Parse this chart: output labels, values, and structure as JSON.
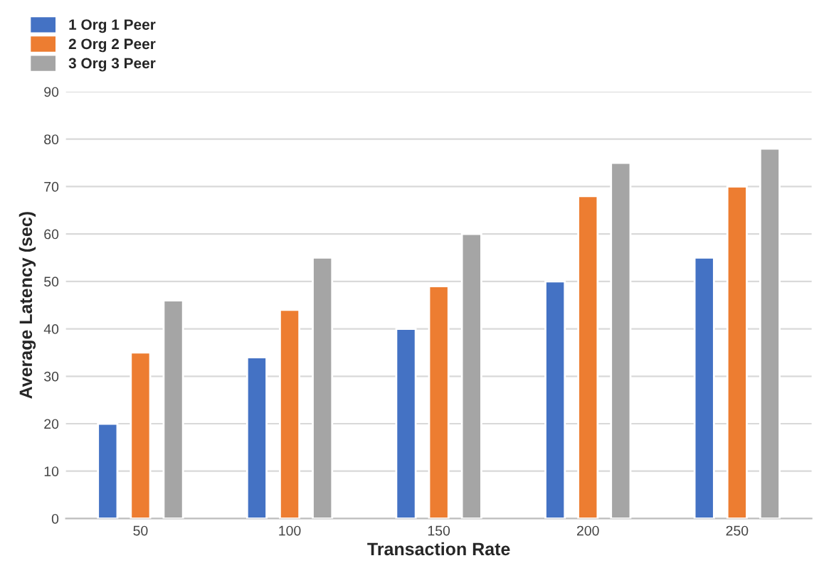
{
  "chart_data": {
    "type": "bar",
    "xlabel": "Transaction Rate",
    "ylabel": "Average Latency (sec)",
    "categories": [
      "50",
      "100",
      "150",
      "200",
      "250"
    ],
    "series": [
      {
        "name": "1 Org 1 Peer",
        "color": "#4472c4",
        "values": [
          20,
          34,
          40,
          50,
          55
        ]
      },
      {
        "name": "2 Org 2 Peer",
        "color": "#ed7d31",
        "values": [
          35,
          44,
          49,
          68,
          70
        ]
      },
      {
        "name": "3 Org 3 Peer",
        "color": "#a5a5a5",
        "values": [
          46,
          55,
          60,
          75,
          78
        ]
      }
    ],
    "ylim": [
      0,
      90
    ],
    "yticks": [
      0,
      10,
      20,
      30,
      40,
      50,
      60,
      70,
      80,
      90
    ],
    "grid": "y",
    "legend": "top left"
  }
}
